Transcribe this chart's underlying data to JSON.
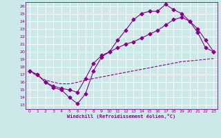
{
  "xlabel": "Windchill (Refroidissement éolien,°C)",
  "xlim": [
    -0.5,
    23.5
  ],
  "ylim": [
    12.5,
    26.5
  ],
  "xticks": [
    0,
    1,
    2,
    3,
    4,
    5,
    6,
    7,
    8,
    9,
    10,
    11,
    12,
    13,
    14,
    15,
    16,
    17,
    18,
    19,
    20,
    21,
    22,
    23
  ],
  "yticks": [
    13,
    14,
    15,
    16,
    17,
    18,
    19,
    20,
    21,
    22,
    23,
    24,
    25,
    26
  ],
  "bg_color": "#cce8e8",
  "grid_color": "#aacccc",
  "line_color": "#880088",
  "line1_x": [
    0,
    1,
    2,
    3,
    4,
    5,
    6,
    7,
    8,
    9,
    10,
    11,
    12,
    13,
    14,
    15,
    16,
    17,
    18,
    19,
    20,
    21,
    22,
    23
  ],
  "line1_y": [
    17.5,
    17.0,
    16.0,
    15.3,
    15.0,
    14.0,
    13.2,
    14.5,
    17.5,
    19.3,
    20.0,
    21.5,
    22.8,
    24.2,
    25.0,
    25.3,
    25.3,
    26.2,
    25.5,
    25.0,
    24.0,
    22.5,
    20.5,
    20.0
  ],
  "line2_x": [
    0,
    1,
    2,
    3,
    4,
    5,
    6,
    7,
    8,
    9,
    10,
    11,
    12,
    13,
    14,
    15,
    16,
    17,
    18,
    19,
    20,
    21,
    22,
    23
  ],
  "line2_y": [
    17.5,
    17.0,
    16.0,
    15.5,
    15.2,
    15.0,
    14.7,
    16.5,
    18.5,
    19.5,
    20.0,
    20.5,
    21.0,
    21.3,
    21.8,
    22.3,
    22.8,
    23.5,
    24.2,
    24.5,
    24.0,
    23.0,
    21.5,
    20.0
  ],
  "line3_x": [
    0,
    1,
    2,
    3,
    4,
    5,
    6,
    7,
    8,
    9,
    10,
    11,
    12,
    13,
    14,
    15,
    16,
    17,
    18,
    19,
    20,
    21,
    22,
    23
  ],
  "line3_y": [
    17.5,
    16.8,
    16.3,
    16.0,
    15.8,
    15.8,
    16.0,
    16.3,
    16.5,
    16.7,
    16.9,
    17.1,
    17.3,
    17.5,
    17.7,
    17.9,
    18.1,
    18.3,
    18.5,
    18.7,
    18.8,
    18.9,
    19.0,
    19.1
  ]
}
